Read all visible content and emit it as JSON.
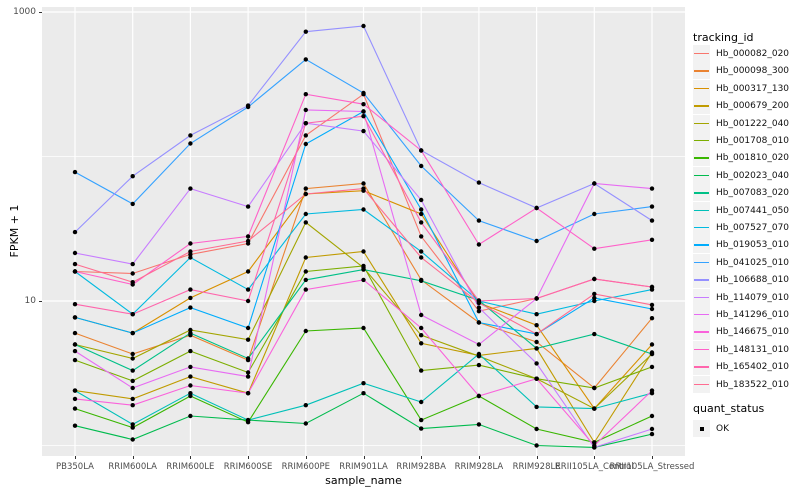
{
  "figure": {
    "y_axis": {
      "title": "FPKM + 1"
    },
    "x_axis": {
      "title": "sample_name"
    },
    "legend": {
      "title": "tracking_id"
    },
    "quant_legend": {
      "title": "quant_status",
      "ok_label": "OK"
    }
  },
  "colors": {
    "panel_bg": "#EBEBEB",
    "grid": "#FFFFFF",
    "tick_label": "#4D4D4D",
    "legend_key_bg": "#F2F2F2",
    "point": "#000000"
  },
  "chart_data": {
    "type": "line",
    "title": "",
    "xlabel": "sample_name",
    "ylabel": "FPKM + 1",
    "y_scale": "log10",
    "y_major_ticks": [
      10,
      1000
    ],
    "y_minor_gridlines": [
      1,
      100
    ],
    "ylim": [
      0.85,
      1100
    ],
    "grid": true,
    "legend_title": "tracking_id",
    "legend_position": "right",
    "point_marker": {
      "legend_title": "quant_status",
      "label": "OK",
      "color": "#000000"
    },
    "categories": [
      "PB350LA",
      "RRIM600LA",
      "RRIM600LE",
      "RRIM600SE",
      "RRIM600PE",
      "RRIM901LA",
      "RRIM928BA",
      "RRIM928LA",
      "RRIM928LE",
      "RRII105LA_Control",
      "RRII105LA_Stressed"
    ],
    "series": [
      {
        "name": "Hb_000082_020",
        "color": "#F8766D",
        "values": [
          16,
          15.5,
          21,
          25,
          140,
          270,
          28,
          8.5,
          10.4,
          14.2,
          12.5
        ]
      },
      {
        "name": "Hb_000098_300",
        "color": "#EA8331",
        "values": [
          6.0,
          4.3,
          5.8,
          3.9,
          60,
          65,
          14,
          7.1,
          5.2,
          2.5,
          7.6
        ]
      },
      {
        "name": "Hb_000317_130",
        "color": "#D89000",
        "values": [
          7.7,
          6.0,
          10.5,
          16,
          55,
          58,
          40,
          9.7,
          6.8,
          1.8,
          5.0
        ]
      },
      {
        "name": "Hb_000679_200",
        "color": "#C09B00",
        "values": [
          2.4,
          2.1,
          3.0,
          2.3,
          20,
          22,
          5.1,
          4.2,
          4.7,
          1.05,
          4.4
        ]
      },
      {
        "name": "Hb_001222_040",
        "color": "#A3A500",
        "values": [
          5.0,
          4.0,
          6.3,
          5.4,
          35,
          17,
          5.8,
          4.15,
          2.9,
          1.8,
          4.3
        ]
      },
      {
        "name": "Hb_001708_010",
        "color": "#7CAE00",
        "values": [
          3.9,
          2.8,
          4.5,
          3.2,
          16,
          17.5,
          3.3,
          3.6,
          2.9,
          2.5,
          3.5
        ]
      },
      {
        "name": "Hb_001810_020",
        "color": "#39B600",
        "values": [
          1.8,
          1.33,
          2.2,
          1.45,
          6.2,
          6.5,
          1.5,
          2.2,
          1.3,
          1.05,
          1.6
        ]
      },
      {
        "name": "Hb_002023_040",
        "color": "#00BB4E",
        "values": [
          1.37,
          1.1,
          1.6,
          1.5,
          1.42,
          2.3,
          1.31,
          1.4,
          1.0,
          0.97,
          1.2
        ]
      },
      {
        "name": "Hb_007083_020",
        "color": "#00C087",
        "values": [
          5.0,
          3.3,
          6.0,
          4.0,
          14,
          16.5,
          13.8,
          10.1,
          4.7,
          5.9,
          4.3
        ]
      },
      {
        "name": "Hb_007441_050",
        "color": "#00C0B8",
        "values": [
          2.4,
          1.4,
          2.3,
          1.5,
          1.9,
          2.7,
          2.0,
          4.3,
          1.85,
          1.8,
          2.3
        ]
      },
      {
        "name": "Hb_007527_070",
        "color": "#00BAE0",
        "values": [
          16,
          8.1,
          20,
          12,
          40,
          43,
          22,
          10,
          8.1,
          10,
          12
        ]
      },
      {
        "name": "Hb_019053_010",
        "color": "#00ACFC",
        "values": [
          7.7,
          6.0,
          9.0,
          6.5,
          122,
          205,
          43,
          7.1,
          5.9,
          10.5,
          8.8
        ]
      },
      {
        "name": "Hb_041025_010",
        "color": "#35A2FF",
        "values": [
          78,
          47,
          123,
          220,
          470,
          275,
          86,
          36,
          26,
          40,
          45
        ]
      },
      {
        "name": "Hb_106688_010",
        "color": "#9590FF",
        "values": [
          30,
          73,
          140,
          225,
          730,
          800,
          110,
          66,
          44,
          65,
          36
        ]
      },
      {
        "name": "Hb_114079_010",
        "color": "#C77CFF",
        "values": [
          21.5,
          18,
          60,
          45,
          170,
          150,
          50,
          9,
          3.7,
          0.97,
          1.3
        ]
      },
      {
        "name": "Hb_141296_010",
        "color": "#E76BF3",
        "values": [
          4.5,
          2.5,
          3.5,
          3.0,
          210,
          205,
          8,
          5,
          10.4,
          65,
          60
        ]
      },
      {
        "name": "Hb_146675_010",
        "color": "#FA62DB",
        "values": [
          2.1,
          1.9,
          2.6,
          2.3,
          12,
          14,
          6.5,
          2.2,
          2.9,
          1.0,
          2.4
        ]
      },
      {
        "name": "Hb_148131_010",
        "color": "#FF61C9",
        "values": [
          16,
          13,
          25,
          28,
          270,
          230,
          110,
          24.6,
          44,
          23,
          26.5
        ]
      },
      {
        "name": "Hb_165402_010",
        "color": "#FF65AC",
        "values": [
          9.5,
          8.1,
          12,
          10,
          170,
          190,
          35,
          10,
          10.4,
          14.2,
          12.5
        ]
      },
      {
        "name": "Hb_183522_010",
        "color": "#FF6C91",
        "values": [
          18,
          13.5,
          22,
          26,
          55,
          60,
          20,
          9.7,
          5.9,
          11.2,
          9.4
        ]
      }
    ]
  }
}
